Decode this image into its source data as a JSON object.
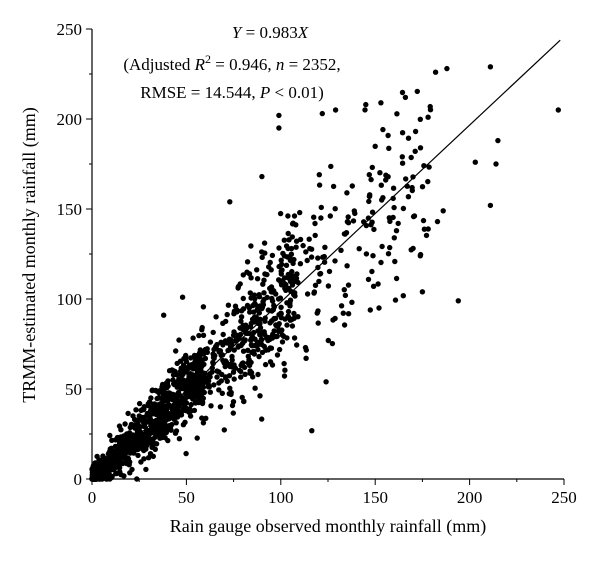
{
  "chart_data": {
    "type": "scatter",
    "xlabel": "Rain gauge observed monthly rainfall (mm)",
    "ylabel": "TRMM-estimated monthly rainfall (mm)",
    "xlim": [
      0,
      250
    ],
    "ylim": [
      0,
      250
    ],
    "xticks": [
      "0",
      "50",
      "100",
      "150",
      "200",
      "250"
    ],
    "yticks": [
      "0",
      "50",
      "100",
      "150",
      "200",
      "250"
    ],
    "grid": false,
    "point_color": "#000000",
    "fit_line": {
      "slope": 0.983,
      "x_range": [
        0,
        248
      ]
    },
    "annotations": {
      "line1": {
        "y_var": "Y",
        "eq": " = 0.983",
        "x_var": "X"
      },
      "line2": {
        "open": "(Adjusted ",
        "r": "R",
        "sup": "2",
        "mid": " = 0.946, ",
        "n": "n",
        "n_val": " = 2352,"
      },
      "line3": {
        "rmse": "RMSE = 14.544, ",
        "p": "P",
        "p_val": " < 0.01)"
      }
    },
    "highlighted_points": [
      {
        "x": 247,
        "y": 205
      },
      {
        "x": 211,
        "y": 229
      },
      {
        "x": 188,
        "y": 228
      },
      {
        "x": 182,
        "y": 226
      },
      {
        "x": 215,
        "y": 188
      },
      {
        "x": 214,
        "y": 175
      },
      {
        "x": 211,
        "y": 152
      },
      {
        "x": 194,
        "y": 99
      },
      {
        "x": 203,
        "y": 176
      },
      {
        "x": 99,
        "y": 202
      },
      {
        "x": 99,
        "y": 195
      },
      {
        "x": 145,
        "y": 208
      },
      {
        "x": 153,
        "y": 209
      },
      {
        "x": 166,
        "y": 212
      },
      {
        "x": 122,
        "y": 203
      },
      {
        "x": 129,
        "y": 205
      },
      {
        "x": 73,
        "y": 154
      },
      {
        "x": 90,
        "y": 168
      },
      {
        "x": 76,
        "y": 96
      },
      {
        "x": 124,
        "y": 54
      },
      {
        "x": 152,
        "y": 95
      },
      {
        "x": 175,
        "y": 104
      },
      {
        "x": 183,
        "y": 143
      },
      {
        "x": 178,
        "y": 201
      },
      {
        "x": 174,
        "y": 184
      },
      {
        "x": 186,
        "y": 149
      },
      {
        "x": 48,
        "y": 101
      },
      {
        "x": 38,
        "y": 91
      },
      {
        "x": 110,
        "y": 148
      },
      {
        "x": 135,
        "y": 159
      }
    ]
  }
}
